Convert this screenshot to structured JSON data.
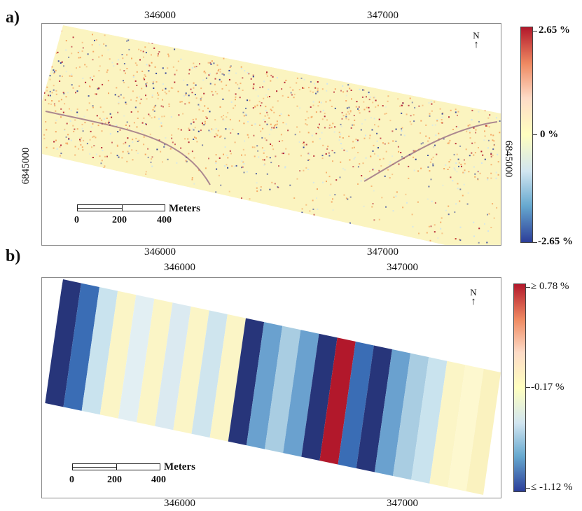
{
  "panel_a": {
    "label": "a)",
    "top_ticks": [
      "346000",
      "347000"
    ],
    "bottom_ticks": [
      "346000",
      "347000"
    ],
    "left_tick": "6845000",
    "right_tick": "6845000",
    "north": "N",
    "scale": {
      "unit": "Meters",
      "labels": [
        "0",
        "200",
        "400"
      ]
    },
    "colorbar": {
      "max_label": "2.65 %",
      "mid_label": "0 %",
      "min_label": "-2.65 %",
      "colors": [
        "#b2182b",
        "#ef8a62",
        "#fddbc7",
        "#ffffbf",
        "#d1e5f0",
        "#67a9cf",
        "#2c3e99"
      ]
    },
    "map_colors": {
      "base": "#fbf4c0",
      "red": "#b2182b",
      "orange": "#f4a460",
      "blue": "#2c3e99",
      "light_blue": "#cde4ef"
    }
  },
  "panel_b": {
    "label": "b)",
    "top_ticks": [
      "346000",
      "347000"
    ],
    "bottom_ticks": [
      "346000",
      "347000"
    ],
    "north": "N",
    "scale": {
      "unit": "Meters",
      "labels": [
        "0",
        "200",
        "400"
      ]
    },
    "colorbar": {
      "max_label": "≥ 0.78 %",
      "mid_label": "-0.17 %",
      "min_label": "≤ -1.12 %",
      "colors": [
        "#b2182b",
        "#ef8a62",
        "#fddbc7",
        "#ffffbf",
        "#d1e5f0",
        "#67a9cf",
        "#2c3e99"
      ]
    },
    "stripe_colors": [
      "#27357a",
      "#3a6db5",
      "#c9e3ee",
      "#fbf5c6",
      "#e2eff3",
      "#fbf5c6",
      "#dbeaf1",
      "#fbf5c6",
      "#cfe5ee",
      "#fbf5c6",
      "#27357a",
      "#6aa1cf",
      "#a9cde2",
      "#6aa1cf",
      "#27357a",
      "#b2182b",
      "#3a6db5",
      "#27357a",
      "#6aa1cf",
      "#a9cde2",
      "#c9e3ee",
      "#fbf5c6",
      "#fdf8cf",
      "#faf2bf",
      "#fdf8cf",
      "#faf2bf"
    ]
  }
}
